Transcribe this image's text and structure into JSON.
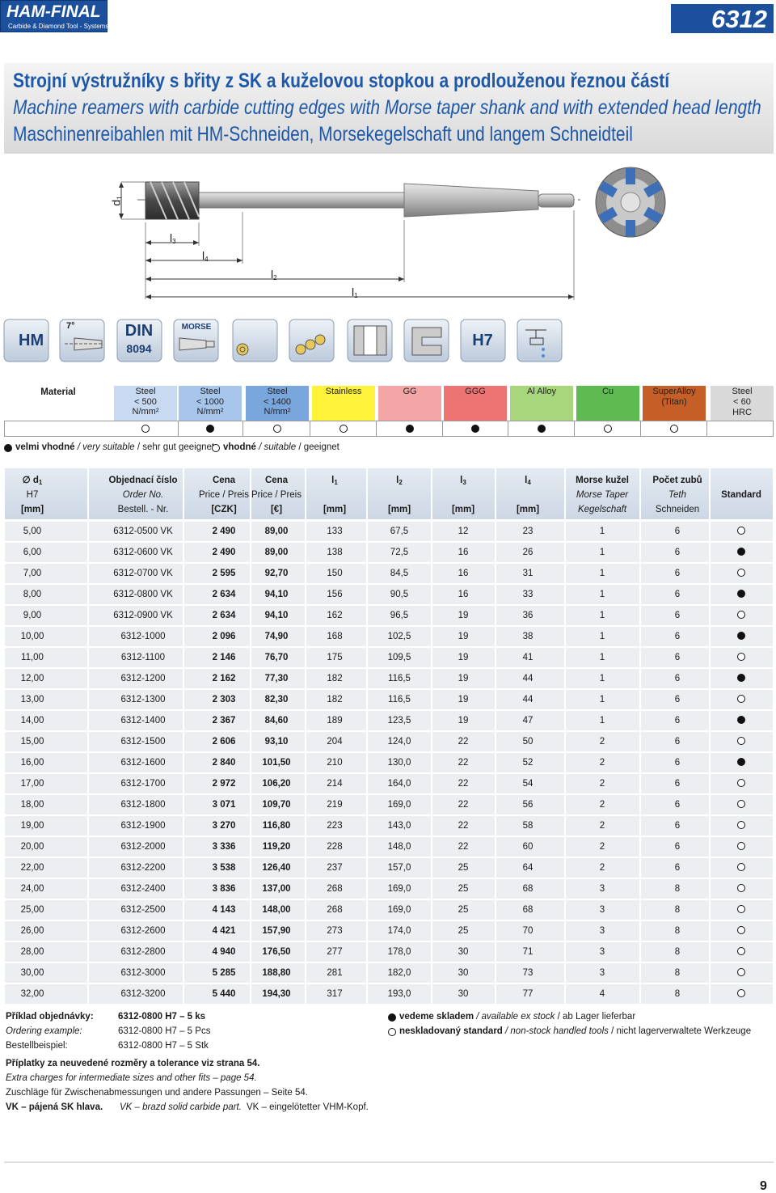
{
  "header": {
    "brand": "HAM-FINAL",
    "tagline": "Carbide & Diamond  Tool - Systems",
    "code": "6312"
  },
  "title": {
    "cz": "Strojní výstružníky s břity z SK a kuželovou stopkou a prodlouženou řeznou částí",
    "en": "Machine reamers with carbide cutting edges with Morse taper shank and with extended head length",
    "de": "Maschinenreibahlen mit HM-Schneiden, Morsekegelschaft und langem Schneidteil"
  },
  "drawing": {
    "labels": [
      {
        "main": "d",
        "sub": "1"
      },
      {
        "main": "l",
        "sub": "3"
      },
      {
        "main": "l",
        "sub": "4"
      },
      {
        "main": "l",
        "sub": "2"
      },
      {
        "main": "l",
        "sub": "1"
      }
    ]
  },
  "icons": {
    "hm": "HM",
    "angle": "7°",
    "din": "DIN",
    "din_no": "8094",
    "morse": "MORSE",
    "tolerance": "H7"
  },
  "materials": {
    "label": "Material",
    "columns": [
      {
        "lines": [
          "Steel",
          "< 500",
          "N/mm²"
        ],
        "color": "#c7daf2",
        "mark": "open"
      },
      {
        "lines": [
          "Steel",
          "< 1000",
          "N/mm²"
        ],
        "color": "#a8c6ec",
        "mark": "filled"
      },
      {
        "lines": [
          "Steel",
          "< 1400",
          "N/mm²"
        ],
        "color": "#7aa6de",
        "mark": "open"
      },
      {
        "lines": [
          "Stainless"
        ],
        "color": "#fff23a",
        "mark": "open"
      },
      {
        "lines": [
          "GG"
        ],
        "color": "#f4a6a6",
        "mark": "filled"
      },
      {
        "lines": [
          "GGG"
        ],
        "color": "#ee7474",
        "mark": "filled"
      },
      {
        "lines": [
          "Al Alloy"
        ],
        "color": "#a8d67c",
        "mark": "filled"
      },
      {
        "lines": [
          "Cu"
        ],
        "color": "#5dbb52",
        "mark": "open"
      },
      {
        "lines": [
          "SuperAlloy",
          "(Titan)"
        ],
        "color": "#c65f27",
        "mark": "open"
      },
      {
        "lines": [
          "Steel",
          "< 60 HRC"
        ],
        "color": "#d9d9d9"
      }
    ]
  },
  "suitability_legend": {
    "filled": [
      "velmi vhodné",
      " / very suitable",
      " / sehr gut geeignet"
    ],
    "open": [
      "vhodné",
      " / suitable",
      " / geeignet"
    ]
  },
  "table": {
    "header": [
      [
        {
          "main": "∅ d",
          "sub": "1"
        },
        "H7",
        "[mm]"
      ],
      [
        "Objednací číslo",
        "Order No.",
        "Bestell. - Nr."
      ],
      [
        "Cena",
        "Price / Preis",
        "[CZK]"
      ],
      [
        "Cena",
        "Price / Preis",
        "[€]"
      ],
      [
        {
          "main": "l",
          "sub": "1"
        },
        "[mm]"
      ],
      [
        {
          "main": "l",
          "sub": "2"
        },
        "[mm]"
      ],
      [
        {
          "main": "l",
          "sub": "3"
        },
        "[mm]"
      ],
      [
        {
          "main": "l",
          "sub": "4"
        },
        "[mm]"
      ],
      [
        "Morse kužel",
        "Morse Taper",
        "Kegelschaft"
      ],
      [
        "Počet zubů",
        "Teth",
        "Schneiden"
      ],
      [
        "Standard"
      ]
    ],
    "rows": [
      [
        "5,00",
        "6312-0500 VK",
        "2 490",
        "89,00",
        "133",
        "67,5",
        "12",
        "23",
        "1",
        "6"
      ],
      [
        "6,00",
        "6312-0600 VK",
        "2 490",
        "89,00",
        "138",
        "72,5",
        "16",
        "26",
        "1",
        "6"
      ],
      [
        "7,00",
        "6312-0700 VK",
        "2 595",
        "92,70",
        "150",
        "84,5",
        "16",
        "31",
        "1",
        "6"
      ],
      [
        "8,00",
        "6312-0800 VK",
        "2 634",
        "94,10",
        "156",
        "90,5",
        "16",
        "33",
        "1",
        "6"
      ],
      [
        "9,00",
        "6312-0900 VK",
        "2 634",
        "94,10",
        "162",
        "96,5",
        "19",
        "36",
        "1",
        "6"
      ],
      [
        "10,00",
        "6312-1000",
        "2 096",
        "74,90",
        "168",
        "102,5",
        "19",
        "38",
        "1",
        "6"
      ],
      [
        "11,00",
        "6312-1100",
        "2 146",
        "76,70",
        "175",
        "109,5",
        "19",
        "41",
        "1",
        "6"
      ],
      [
        "12,00",
        "6312-1200",
        "2 162",
        "77,30",
        "182",
        "116,5",
        "19",
        "44",
        "1",
        "6"
      ],
      [
        "13,00",
        "6312-1300",
        "2 303",
        "82,30",
        "182",
        "116,5",
        "19",
        "44",
        "1",
        "6"
      ],
      [
        "14,00",
        "6312-1400",
        "2 367",
        "84,60",
        "189",
        "123,5",
        "19",
        "47",
        "1",
        "6"
      ],
      [
        "15,00",
        "6312-1500",
        "2 606",
        "93,10",
        "204",
        "124,0",
        "22",
        "50",
        "2",
        "6"
      ],
      [
        "16,00",
        "6312-1600",
        "2 840",
        "101,50",
        "210",
        "130,0",
        "22",
        "52",
        "2",
        "6"
      ],
      [
        "17,00",
        "6312-1700",
        "2 972",
        "106,20",
        "214",
        "164,0",
        "22",
        "54",
        "2",
        "6"
      ],
      [
        "18,00",
        "6312-1800",
        "3 071",
        "109,70",
        "219",
        "169,0",
        "22",
        "56",
        "2",
        "6"
      ],
      [
        "19,00",
        "6312-1900",
        "3 270",
        "116,80",
        "223",
        "143,0",
        "22",
        "58",
        "2",
        "6"
      ],
      [
        "20,00",
        "6312-2000",
        "3 336",
        "119,20",
        "228",
        "148,0",
        "22",
        "60",
        "2",
        "6"
      ],
      [
        "22,00",
        "6312-2200",
        "3 538",
        "126,40",
        "237",
        "157,0",
        "25",
        "64",
        "2",
        "6"
      ],
      [
        "24,00",
        "6312-2400",
        "3 836",
        "137,00",
        "268",
        "169,0",
        "25",
        "68",
        "3",
        "8"
      ],
      [
        "25,00",
        "6312-2500",
        "4 143",
        "148,00",
        "268",
        "169,0",
        "25",
        "68",
        "3",
        "8"
      ],
      [
        "26,00",
        "6312-2600",
        "4 421",
        "157,90",
        "273",
        "174,0",
        "25",
        "70",
        "3",
        "8"
      ],
      [
        "28,00",
        "6312-2800",
        "4 940",
        "176,50",
        "277",
        "178,0",
        "30",
        "71",
        "3",
        "8"
      ],
      [
        "30,00",
        "6312-3000",
        "5 285",
        "188,80",
        "281",
        "182,0",
        "30",
        "73",
        "3",
        "8"
      ],
      [
        "32,00",
        "6312-3200",
        "5 440",
        "194,30",
        "317",
        "193,0",
        "30",
        "77",
        "4",
        "8"
      ]
    ],
    "standard": [
      "open",
      "filled",
      "open",
      "filled",
      "open",
      "filled",
      "open",
      "filled",
      "open",
      "filled",
      "open",
      "filled",
      "open",
      "open",
      "open",
      "open",
      "open",
      "open",
      "open",
      "open",
      "open",
      "open",
      "open"
    ]
  },
  "footer": {
    "order": [
      [
        "Příklad objednávky:",
        "6312-0800 H7 – 5 ks"
      ],
      [
        "Ordering example:",
        "6312-0800 H7 – 5 Pcs"
      ],
      [
        "Bestellbeispiel:",
        "6312-0800 H7 – 5 Stk"
      ]
    ],
    "stock": {
      "filled": [
        "vedeme skladem",
        " / available ex stock",
        " / ab Lager lieferbar"
      ],
      "open": [
        "neskladovaný standard",
        " / non-stock handled tools",
        " / nicht lagerverwaltete Werkzeuge"
      ]
    },
    "notes": [
      "Příplatky za neuvedené rozměry a tolerance viz strana 54.",
      "Extra charges for intermediate sizes and other fits – page 54.",
      "Zuschläge für Zwischenabmessungen und andere Passungen – Seite 54."
    ],
    "vk": [
      "VK – pájená SK hlava.",
      "VK – brazd solid carbide part.",
      "VK – eingelötetter VHM-Kopf."
    ]
  },
  "page_number": "9"
}
